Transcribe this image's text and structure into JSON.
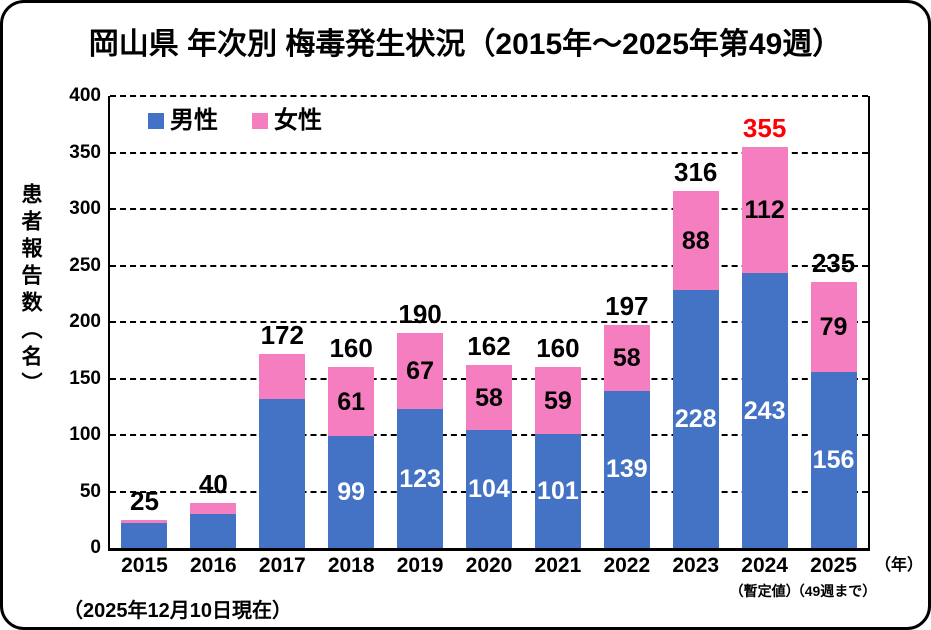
{
  "title": "岡山県 年次別 梅毒発生状況（2015年～2025年第49週）",
  "footnote": "（2025年12月10日現在）",
  "legend": {
    "male_label": "男性",
    "female_label": "女性"
  },
  "y_axis": {
    "title": "患者報告数（名）",
    "ticks": [
      0,
      50,
      100,
      150,
      200,
      250,
      300,
      350,
      400
    ]
  },
  "x_axis": {
    "unit_label": "（年）"
  },
  "colors": {
    "male": "#4472C4",
    "female": "#F57EC0",
    "total_default": "#000000",
    "total_highlight": "#FF0000",
    "male_label_text": "#FFFFFF",
    "female_label_text": "#000000",
    "gridline": "#000000"
  },
  "chart_data": {
    "type": "bar",
    "stacked": true,
    "title": "岡山県 年次別 梅毒発生状況（2015年～2025年第49週）",
    "xlabel": "（年）",
    "ylabel": "患者報告数（名）",
    "ylim": [
      0,
      400
    ],
    "grid": "dashed-horizontal",
    "legend_position": "top-left",
    "categories": [
      "2015",
      "2016",
      "2017",
      "2018",
      "2019",
      "2020",
      "2021",
      "2022",
      "2023",
      "2024",
      "2025"
    ],
    "category_notes": [
      "",
      "",
      "",
      "",
      "",
      "",
      "",
      "",
      "",
      "（暫定値）",
      "（49週まで）"
    ],
    "series": [
      {
        "name": "男性",
        "values": [
          22,
          30,
          132,
          99,
          123,
          104,
          101,
          139,
          228,
          243,
          156
        ],
        "value_labels": [
          "",
          "",
          "",
          "99",
          "123",
          "104",
          "101",
          "139",
          "228",
          "243",
          "156"
        ]
      },
      {
        "name": "女性",
        "values": [
          3,
          10,
          40,
          61,
          67,
          58,
          59,
          58,
          88,
          112,
          79
        ],
        "value_labels": [
          "",
          "",
          "",
          "61",
          "67",
          "58",
          "59",
          "58",
          "88",
          "112",
          "79"
        ]
      }
    ],
    "totals": [
      25,
      40,
      172,
      160,
      190,
      162,
      160,
      197,
      316,
      355,
      235
    ],
    "total_label_colors": [
      "#000000",
      "#000000",
      "#000000",
      "#000000",
      "#000000",
      "#000000",
      "#000000",
      "#000000",
      "#000000",
      "#FF0000",
      "#000000"
    ]
  }
}
